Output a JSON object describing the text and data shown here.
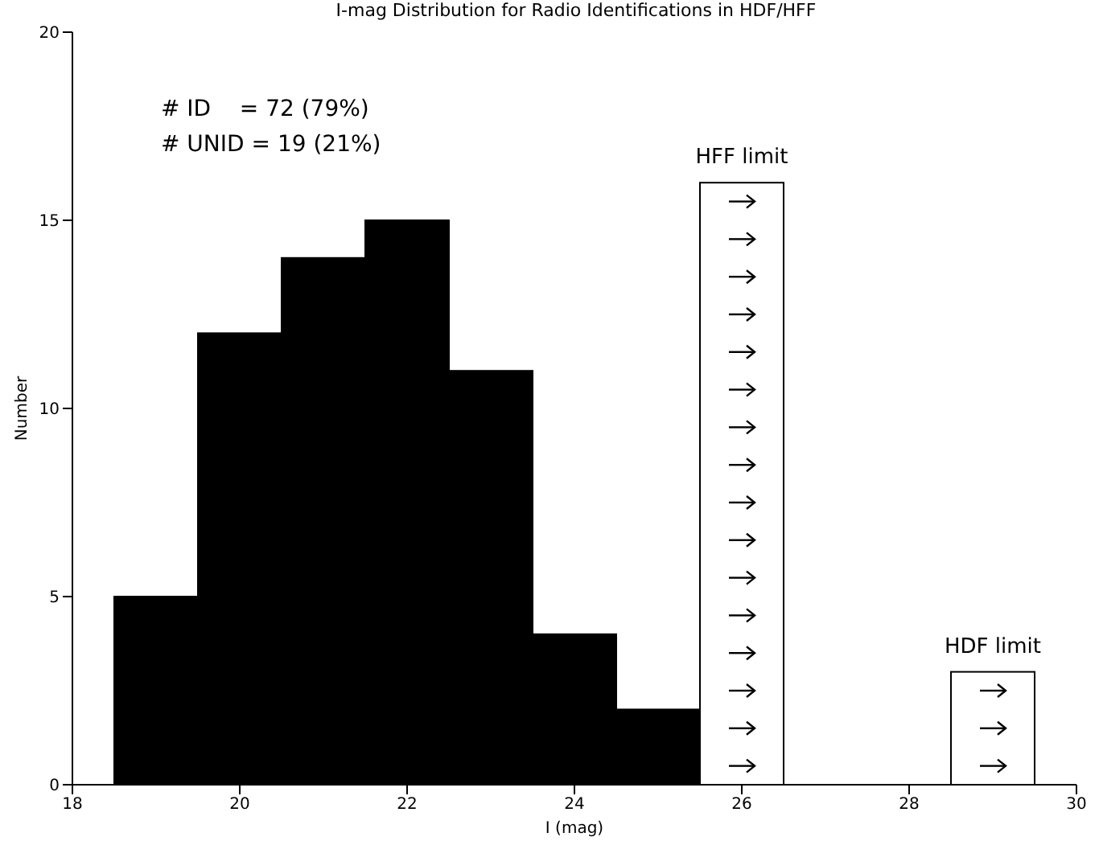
{
  "chart_data": {
    "type": "histogram",
    "title": "I-mag Distribution for Radio Identifications in HDF/HFF",
    "xlabel": "I (mag)",
    "ylabel": "Number",
    "bins": [
      18.5,
      19.5,
      20.5,
      21.5,
      22.5,
      23.5,
      24.5,
      25.5,
      26.5,
      27.5,
      28.5,
      29.5
    ],
    "series": [
      {
        "color": "#000000",
        "values": [
          5,
          12,
          14,
          15,
          11,
          4,
          2,
          null,
          null,
          null,
          null
        ]
      },
      {
        "color": "#ffffff",
        "values": [
          null,
          null,
          null,
          null,
          null,
          null,
          null,
          16,
          0,
          0,
          3
        ]
      }
    ],
    "xlim": [
      18,
      30
    ],
    "xticks": [
      18,
      20,
      22,
      24,
      26,
      28,
      30
    ],
    "ylim": [
      0,
      20
    ],
    "yticks": [
      0,
      5,
      10,
      15,
      20
    ],
    "grid": false,
    "annotations": [
      "# ID    = 72 (79%)",
      "# UNID = 19 (21%)",
      {
        "text": "HFF limit",
        "x": 26,
        "y": 16
      },
      {
        "text": "HDF limit",
        "x": 29,
        "y": 3
      }
    ]
  }
}
